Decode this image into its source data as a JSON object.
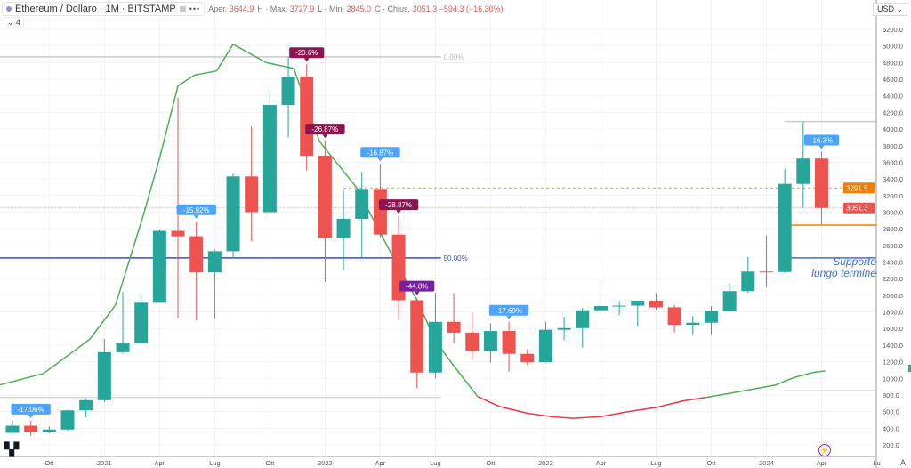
{
  "header": {
    "symbol": "Ethereum / Dollaro · 1M · BITSTAMP",
    "open_label": "Aper.",
    "open": "3644.9",
    "high_label": "H · Max.",
    "high": "3727.9",
    "low_label": "L · Min.",
    "low": "2845.0",
    "close_label": "C · Chius.",
    "close": "3051.3",
    "change": "−594.3 (−16.30%)",
    "more": "•••",
    "collapse": "⌄ 4"
  },
  "currency": "USD ⌄",
  "auto_label": "A",
  "logo_text": "TV",
  "annotation": {
    "line1": "Supporto",
    "line2": "lungo termine"
  },
  "colors": {
    "up": "#26a69a",
    "down": "#ef5350",
    "ma_up": "#4caf50",
    "ma_down": "#f23645",
    "callout_blue": "#4da3ff",
    "callout_maroon": "#8b1650",
    "callout_purple": "#7b1fa2",
    "orange": "#f57c00",
    "support_blue": "#3f6de0"
  },
  "chart_data": {
    "type": "candlestick",
    "title": "Ethereum / Dollaro · 1M · BITSTAMP",
    "ylabel": "USD",
    "ylim": [
      100,
      5300
    ],
    "yticks": [
      200,
      400,
      600,
      800,
      1000,
      1200,
      1400,
      1600,
      1800,
      2000,
      2200,
      2400,
      2600,
      2800,
      3000,
      3200,
      3400,
      3600,
      3800,
      4000,
      4200,
      4400,
      4600,
      4800,
      5000,
      5200
    ],
    "start_month": "2020-08",
    "xticks": [
      {
        "i": 2,
        "label": "Ott"
      },
      {
        "i": 5,
        "label": "2021"
      },
      {
        "i": 8,
        "label": "Apr"
      },
      {
        "i": 11,
        "label": "Lug"
      },
      {
        "i": 14,
        "label": "Ott"
      },
      {
        "i": 17,
        "label": "2022"
      },
      {
        "i": 20,
        "label": "Apr"
      },
      {
        "i": 23,
        "label": "Lug"
      },
      {
        "i": 26,
        "label": "Ott"
      },
      {
        "i": 29,
        "label": "2023"
      },
      {
        "i": 32,
        "label": "Apr"
      },
      {
        "i": 35,
        "label": "Lug"
      },
      {
        "i": 38,
        "label": "Ott"
      },
      {
        "i": 41,
        "label": "2024"
      },
      {
        "i": 44,
        "label": "Apr"
      },
      {
        "i": 47,
        "label": "Lu"
      }
    ],
    "candles_ohlc": [
      [
        345,
        490,
        340,
        430
      ],
      [
        430,
        490,
        310,
        360
      ],
      [
        360,
        420,
        340,
        385
      ],
      [
        385,
        620,
        370,
        615
      ],
      [
        615,
        760,
        530,
        737
      ],
      [
        737,
        1475,
        715,
        1315
      ],
      [
        1315,
        2040,
        1300,
        1420
      ],
      [
        1420,
        2000,
        1420,
        1920
      ],
      [
        1920,
        2790,
        1930,
        2775
      ],
      [
        2775,
        4380,
        1730,
        2710
      ],
      [
        2710,
        2890,
        1700,
        2275
      ],
      [
        2275,
        2550,
        1720,
        2530
      ],
      [
        2530,
        3470,
        2450,
        3430
      ],
      [
        3430,
        4030,
        2650,
        3000
      ],
      [
        3000,
        4460,
        2970,
        4290
      ],
      [
        4290,
        4870,
        3900,
        4630
      ],
      [
        4630,
        4780,
        3500,
        3680
      ],
      [
        3680,
        3860,
        2160,
        2690
      ],
      [
        2690,
        3270,
        2300,
        2920
      ],
      [
        2920,
        3480,
        2450,
        3280
      ],
      [
        3280,
        3580,
        2700,
        2730
      ],
      [
        2730,
        2950,
        1700,
        1940
      ],
      [
        1940,
        1970,
        880,
        1070
      ],
      [
        1070,
        2030,
        1000,
        1680
      ],
      [
        1680,
        2030,
        1420,
        1550
      ],
      [
        1550,
        1790,
        1220,
        1330
      ],
      [
        1330,
        1660,
        1190,
        1570
      ],
      [
        1570,
        1680,
        1080,
        1295
      ],
      [
        1295,
        1350,
        1160,
        1195
      ],
      [
        1195,
        1680,
        1190,
        1585
      ],
      [
        1585,
        1740,
        1460,
        1605
      ],
      [
        1605,
        1850,
        1370,
        1820
      ],
      [
        1820,
        2140,
        1780,
        1870
      ],
      [
        1870,
        1930,
        1760,
        1875
      ],
      [
        1875,
        1930,
        1630,
        1935
      ],
      [
        1935,
        2030,
        1830,
        1855
      ],
      [
        1855,
        1880,
        1550,
        1645
      ],
      [
        1645,
        1750,
        1530,
        1670
      ],
      [
        1670,
        1870,
        1530,
        1815
      ],
      [
        1815,
        2140,
        1800,
        2050
      ],
      [
        2050,
        2460,
        2030,
        2285
      ],
      [
        2285,
        2720,
        2100,
        2280
      ],
      [
        2280,
        3520,
        2270,
        3340
      ],
      [
        3340,
        4090,
        3050,
        3645
      ],
      [
        3645,
        3728,
        2845,
        3051
      ]
    ],
    "ma_line": [
      [
        -0.7,
        920
      ],
      [
        1.7,
        1060
      ],
      [
        4.2,
        1470
      ],
      [
        5.6,
        1880
      ],
      [
        7.1,
        2950
      ],
      [
        8.0,
        3650
      ],
      [
        9.0,
        4520
      ],
      [
        9.9,
        4650
      ],
      [
        11.1,
        4700
      ],
      [
        12.0,
        5020
      ],
      [
        13.8,
        4800
      ],
      [
        15.3,
        4730
      ],
      [
        16.7,
        3850
      ],
      [
        18.7,
        3300
      ],
      [
        20.6,
        2500
      ],
      [
        22.1,
        1900
      ],
      [
        23.0,
        1450
      ],
      [
        24.0,
        1150
      ],
      [
        25.3,
        780
      ],
      [
        26.5,
        660
      ],
      [
        28.0,
        580
      ],
      [
        29.5,
        535
      ],
      [
        30.5,
        520
      ],
      [
        32.0,
        540
      ],
      [
        33.5,
        600
      ],
      [
        35.0,
        650
      ],
      [
        36.5,
        730
      ],
      [
        37.7,
        770
      ],
      [
        39.0,
        820
      ],
      [
        40.5,
        880
      ],
      [
        41.5,
        920
      ],
      [
        42.5,
        1010
      ],
      [
        43.5,
        1070
      ],
      [
        44.2,
        1090
      ]
    ],
    "ma_red_range": [
      25.3,
      37.7
    ],
    "callouts": [
      {
        "i": 1,
        "text": "-17.06%",
        "style": "blue"
      },
      {
        "i": 10,
        "text": "-15.92%",
        "style": "blue"
      },
      {
        "i": 16,
        "text": "-20.6%",
        "style": "maroon"
      },
      {
        "i": 17,
        "text": "-26.87%",
        "style": "maroon"
      },
      {
        "i": 20,
        "text": "-16.87%",
        "style": "blue"
      },
      {
        "i": 21,
        "text": "-28.87%",
        "style": "maroon"
      },
      {
        "i": 22,
        "text": "-44.8%",
        "style": "purple"
      },
      {
        "i": 27,
        "text": "-17.69%",
        "style": "blue"
      },
      {
        "i": 44,
        "text": "-16.3%",
        "style": "blue"
      }
    ],
    "levels": [
      {
        "value": 4870,
        "from": -0.7,
        "to": 23.3,
        "color": "#c8c8c8",
        "label": "0.00%"
      },
      {
        "value": 2450,
        "from": -0.7,
        "to": 23.3,
        "color": "#2f4fd6",
        "label": "50.00%"
      },
      {
        "value": 770,
        "from": -0.7,
        "to": 23.3,
        "color": "#dddddd",
        "label": ""
      },
      {
        "value": 4090,
        "from": 42.0,
        "to": 47.0,
        "color": "#cccccc",
        "label": ""
      },
      {
        "value": 2845,
        "from": 42.0,
        "to": 47.0,
        "color": "#f57c00",
        "label": ""
      },
      {
        "value": 2450,
        "from": 42.0,
        "to": 47.0,
        "color": "#3f6de0",
        "label": ""
      },
      {
        "value": 850,
        "from": 42.0,
        "to": 47.0,
        "color": "#cccccc",
        "label": ""
      }
    ],
    "price_badges": [
      {
        "value": 3291.5,
        "text": "3291.5",
        "color": "#f57c00",
        "line": "dashed",
        "from": 18.0
      },
      {
        "value": 3051.3,
        "text": "3051.3",
        "color": "#ef5350",
        "line": "dotted",
        "from": -0.7
      }
    ]
  }
}
